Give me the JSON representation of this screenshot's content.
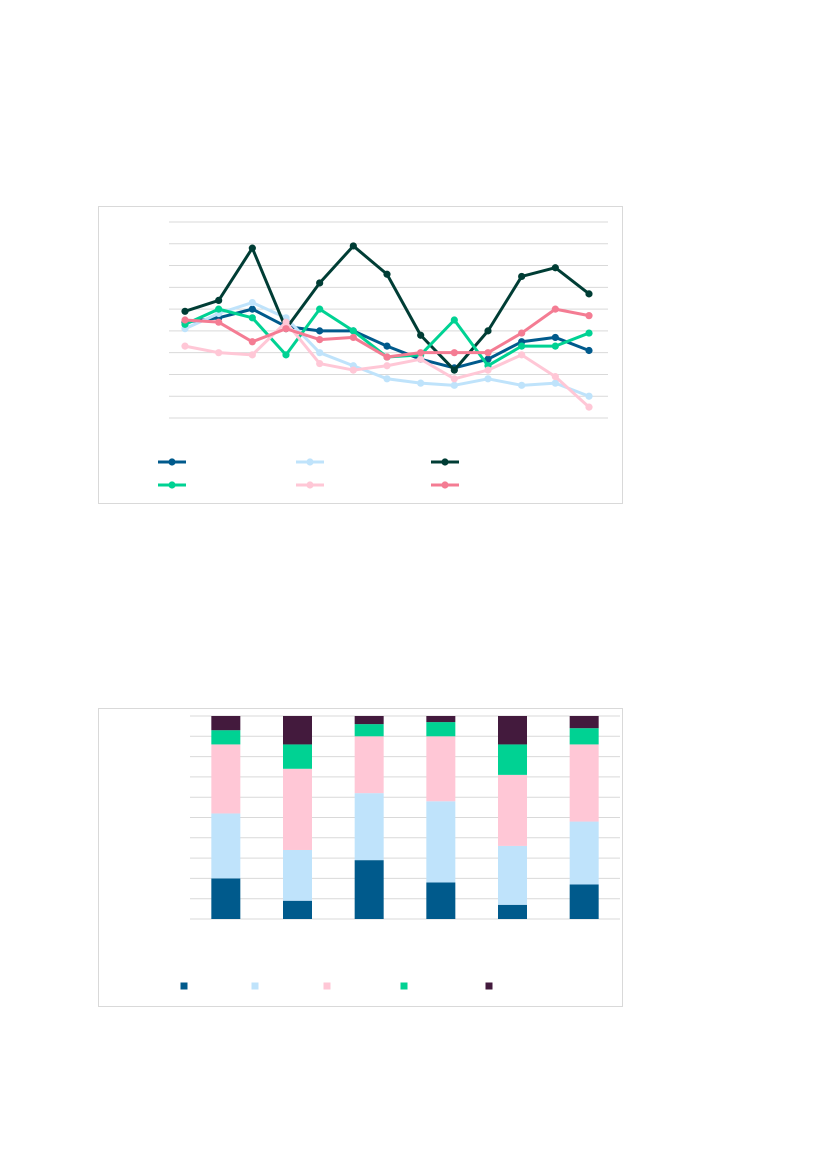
{
  "colors": {
    "navy": "#005a8c",
    "light_blue": "#bfe3fb",
    "dark_green": "#003d35",
    "teal": "#00d293",
    "pink": "#ffc7d6",
    "rose": "#f47c93",
    "plum": "#431a3d",
    "grid": "#d9d9d9"
  },
  "chart_data": [
    {
      "type": "line",
      "title": "",
      "xlabel": "",
      "ylabel": "",
      "grid": true,
      "legend_position": "bottom",
      "x": [
        1,
        2,
        3,
        4,
        5,
        6,
        7,
        8,
        9,
        10,
        11,
        12,
        13
      ],
      "ylim": [
        0,
        9
      ],
      "series": [
        {
          "color": "#005a8c",
          "values": [
            4.4,
            4.6,
            5.0,
            4.2,
            4.0,
            4.0,
            3.3,
            2.7,
            2.3,
            2.7,
            3.5,
            3.7,
            3.1
          ]
        },
        {
          "color": "#bfe3fb",
          "values": [
            4.1,
            4.8,
            5.3,
            4.6,
            3.0,
            2.4,
            1.8,
            1.6,
            1.5,
            1.8,
            1.5,
            1.6,
            1.0
          ]
        },
        {
          "color": "#003d35",
          "values": [
            4.9,
            5.4,
            7.8,
            4.1,
            6.2,
            7.9,
            6.6,
            3.8,
            2.2,
            4.0,
            6.5,
            6.9,
            5.7
          ]
        },
        {
          "color": "#00d293",
          "values": [
            4.3,
            5.0,
            4.6,
            2.9,
            5.0,
            4.0,
            2.8,
            2.9,
            4.5,
            2.4,
            3.3,
            3.3,
            3.9
          ]
        },
        {
          "color": "#ffc7d6",
          "values": [
            3.3,
            3.0,
            2.9,
            4.4,
            2.5,
            2.2,
            2.4,
            2.7,
            1.8,
            2.2,
            2.9,
            1.9,
            0.5
          ]
        },
        {
          "color": "#f47c93",
          "values": [
            4.5,
            4.4,
            3.5,
            4.1,
            3.6,
            3.7,
            2.8,
            3.0,
            3.0,
            3.0,
            3.9,
            5.0,
            4.7
          ]
        }
      ]
    },
    {
      "type": "bar",
      "stacked": true,
      "title": "",
      "xlabel": "",
      "ylabel": "",
      "grid": true,
      "legend_position": "bottom",
      "categories": [
        "",
        "",
        "",
        "",
        "",
        ""
      ],
      "ylim": [
        0,
        100
      ],
      "series": [
        {
          "color": "#005a8c",
          "values": [
            20,
            9,
            29,
            18,
            7,
            17
          ]
        },
        {
          "color": "#bfe3fb",
          "values": [
            32,
            25,
            33,
            40,
            29,
            31
          ]
        },
        {
          "color": "#ffc7d6",
          "values": [
            34,
            40,
            28,
            32,
            35,
            38
          ]
        },
        {
          "color": "#00d293",
          "values": [
            7,
            12,
            6,
            7,
            15,
            8
          ]
        },
        {
          "color": "#431a3d",
          "values": [
            7,
            14,
            4,
            3,
            14,
            6
          ]
        }
      ]
    }
  ]
}
